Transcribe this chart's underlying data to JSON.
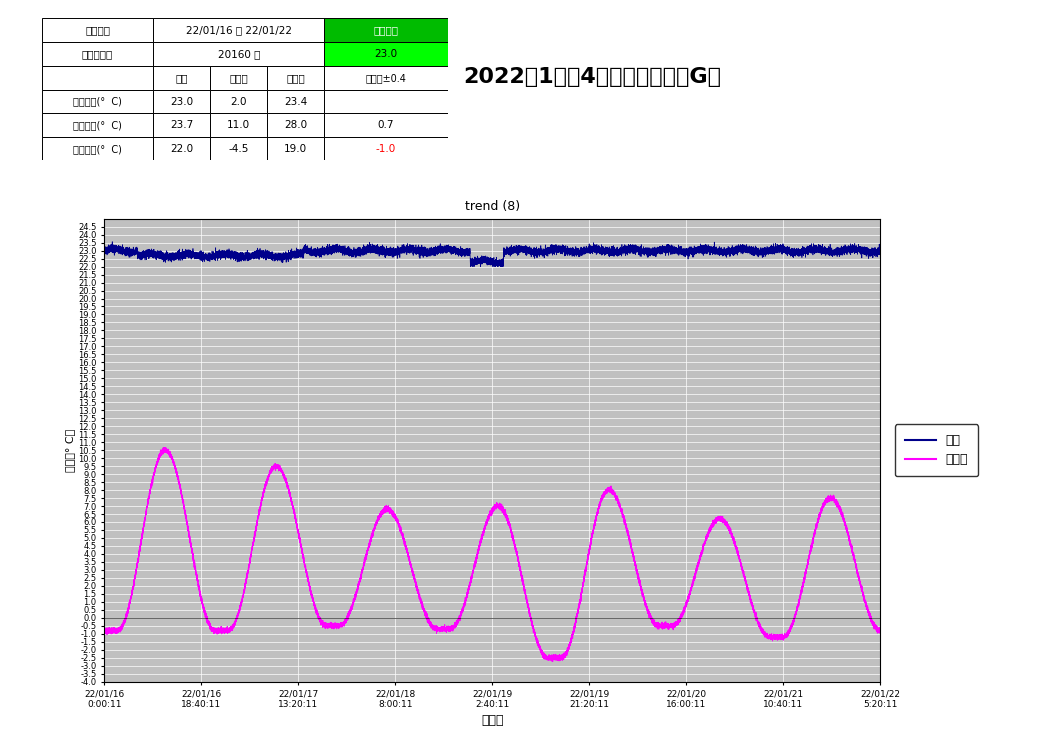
{
  "title_main": "2022年1月第4週　自己評価【G】",
  "chart_title": "trend (8)",
  "xlabel": "測定日",
  "ylabel": "温度（° C）",
  "legend_entries": [
    "室温",
    "外気温"
  ],
  "room_temp_color": "#00008B",
  "outside_temp_color": "#FF00FF",
  "period": "22/01/16 ～ 22/01/22",
  "record_count": "20160 回",
  "target_temp": "23.0",
  "target_diff": "目標差±0.4",
  "target_diff_max": "0.7",
  "target_diff_min": "-1.0",
  "avg_room": "23.0",
  "avg_out": "2.0",
  "avg_ac": "23.4",
  "max_room": "23.7",
  "max_out": "11.0",
  "max_ac": "28.0",
  "min_room": "22.0",
  "min_out": "-4.5",
  "min_ac": "19.0",
  "ylim_min": -4.0,
  "ylim_max": 25.0,
  "plot_bg_color": "#C0C0C0",
  "xtick_labels": [
    "22/01/16\n0:00:11",
    "22/01/16\n18:40:11",
    "22/01/17\n13:20:11",
    "22/01/18\n8:00:11",
    "22/01/19\n2:40:11",
    "22/01/19\n21:20:11",
    "22/01/20\n16:00:11",
    "22/01/21\n10:40:11",
    "22/01/22\n5:20:11"
  ]
}
